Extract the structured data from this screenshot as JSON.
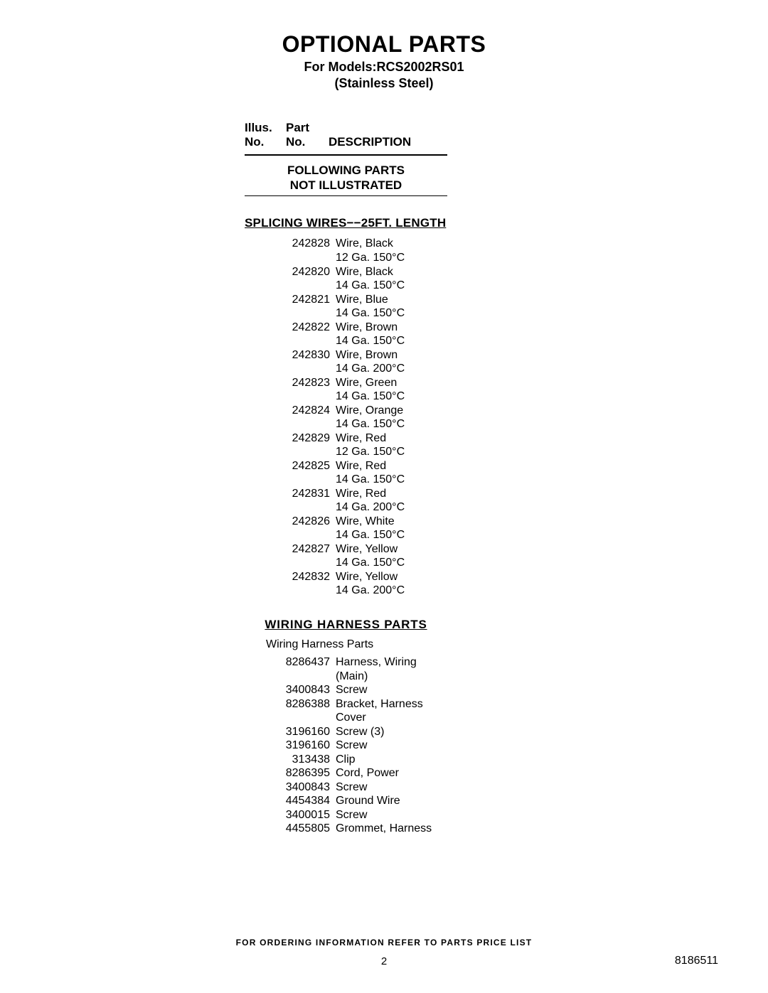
{
  "title": "OPTIONAL PARTS",
  "subtitle_line1": "For Models:RCS2002RS01",
  "subtitle_line2": "(Stainless Steel)",
  "col_headers": {
    "illus_line1": "Illus.",
    "illus_line2": "No.",
    "part_line1": "Part",
    "part_line2": "No.",
    "desc": "DESCRIPTION"
  },
  "notice_line1": "FOLLOWING PARTS",
  "notice_line2": "NOT ILLUSTRATED",
  "sections": [
    {
      "heading": "SPLICING WIRES−−25FT. LENGTH",
      "heading_class": "section-heading",
      "subhead": null,
      "rows": [
        {
          "illus": "",
          "part": "242828",
          "desc": "Wire, Black\n12 Ga. 150°C"
        },
        {
          "illus": "",
          "part": "242820",
          "desc": "Wire, Black\n14 Ga. 150°C"
        },
        {
          "illus": "",
          "part": "242821",
          "desc": "Wire, Blue\n14 Ga. 150°C"
        },
        {
          "illus": "",
          "part": "242822",
          "desc": "Wire, Brown\n14 Ga. 150°C"
        },
        {
          "illus": "",
          "part": "242830",
          "desc": "Wire, Brown\n14 Ga. 200°C"
        },
        {
          "illus": "",
          "part": "242823",
          "desc": "Wire, Green\n14 Ga. 150°C"
        },
        {
          "illus": "",
          "part": "242824",
          "desc": "Wire, Orange\n14 Ga. 150°C"
        },
        {
          "illus": "",
          "part": "242829",
          "desc": "Wire, Red\n12 Ga. 150°C"
        },
        {
          "illus": "",
          "part": "242825",
          "desc": "Wire, Red\n14 Ga. 150°C"
        },
        {
          "illus": "",
          "part": "242831",
          "desc": "Wire, Red\n14 Ga. 200°C"
        },
        {
          "illus": "",
          "part": "242826",
          "desc": "Wire, White\n14 Ga. 150°C"
        },
        {
          "illus": "",
          "part": "242827",
          "desc": "Wire, Yellow\n14 Ga. 150°C"
        },
        {
          "illus": "",
          "part": "242832",
          "desc": "Wire, Yellow\n14 Ga. 200°C"
        }
      ]
    },
    {
      "heading": "WIRING HARNESS PARTS",
      "heading_class": "section-heading center",
      "subhead": "Wiring Harness Parts",
      "rows": [
        {
          "illus": "",
          "part": "8286437",
          "desc": "Harness, Wiring\n(Main)"
        },
        {
          "illus": "",
          "part": "3400843",
          "desc": "Screw"
        },
        {
          "illus": "",
          "part": "8286388",
          "desc": "Bracket, Harness\nCover"
        },
        {
          "illus": "",
          "part": "3196160",
          "desc": "Screw (3)"
        },
        {
          "illus": "",
          "part": "3196160",
          "desc": "Screw"
        },
        {
          "illus": "",
          "part": "313438",
          "desc": "Clip"
        },
        {
          "illus": "",
          "part": "8286395",
          "desc": "Cord, Power"
        },
        {
          "illus": "",
          "part": "3400843",
          "desc": "Screw"
        },
        {
          "illus": "",
          "part": "4454384",
          "desc": "Ground Wire"
        },
        {
          "illus": "",
          "part": "3400015",
          "desc": "Screw"
        },
        {
          "illus": "",
          "part": "4455805",
          "desc": "Grommet, Harness"
        }
      ]
    }
  ],
  "footer_note": "FOR ORDERING INFORMATION REFER TO PARTS PRICE LIST",
  "page_number": "2",
  "doc_number": "8186511"
}
